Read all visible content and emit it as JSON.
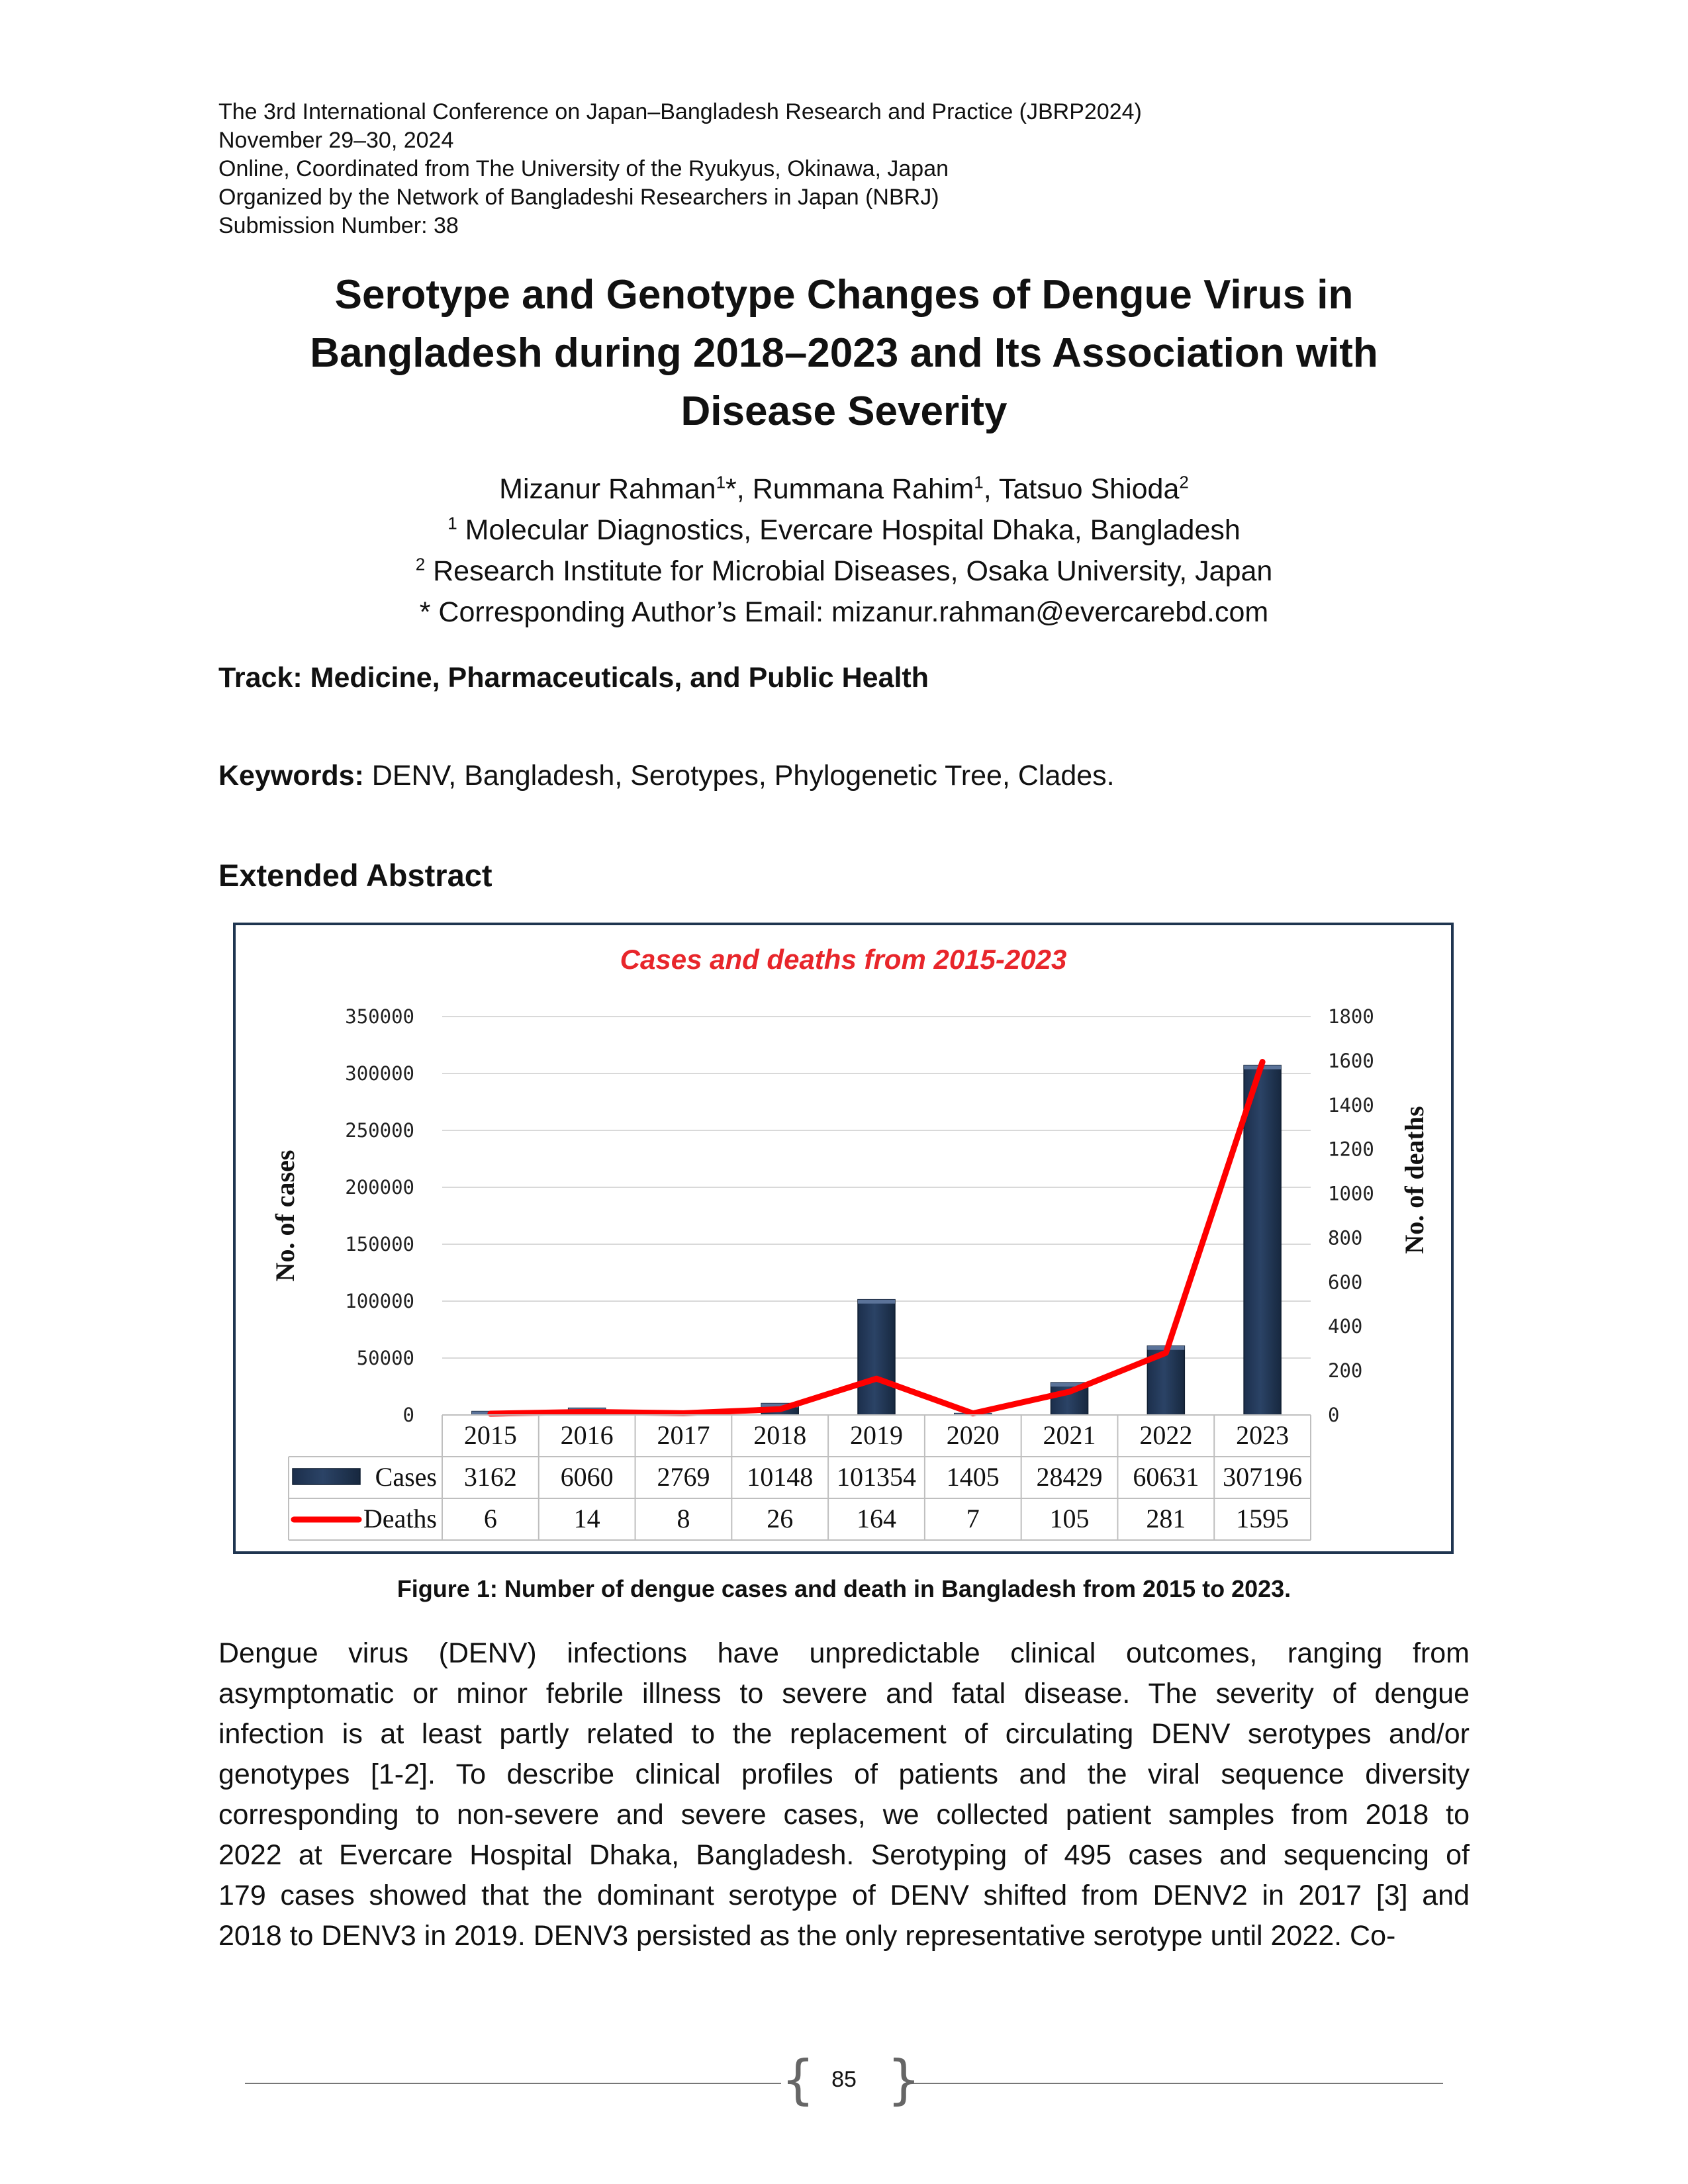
{
  "header": {
    "lines": [
      "The 3rd International Conference on Japan–Bangladesh Research and Practice (JBRP2024)",
      "November 29–30, 2024",
      "Online, Coordinated from The University of the Ryukyus, Okinawa, Japan",
      "Organized by the Network of Bangladeshi Researchers in Japan (NBRJ)",
      "Submission Number: 38"
    ]
  },
  "title": {
    "lines": [
      "Serotype and Genotype Changes of Dengue Virus in",
      "Bangladesh during 2018–2023 and Its Association with",
      "Disease Severity"
    ]
  },
  "authors": {
    "a1": "Mizanur Rahman",
    "a1_sup": "1",
    "a1_mark": "*, ",
    "a2": "Rummana Rahim",
    "a2_sup": "1",
    "a2_sep": ", ",
    "a3": "Tatsuo Shioda",
    "a3_sup": "2",
    "aff1_sup": "1",
    "aff1": " Molecular Diagnostics, Evercare Hospital Dhaka, Bangladesh",
    "aff2_sup": "2",
    "aff2": " Research Institute for Microbial Diseases, Osaka University, Japan",
    "email": "* Corresponding Author’s Email: mizanur.rahman@evercarebd.com"
  },
  "track": "Track: Medicine, Pharmaceuticals, and Public Health",
  "keywords": {
    "label": "Keywords:",
    "text": " DENV, Bangladesh, Serotypes, Phylogenetic Tree, Clades."
  },
  "section_heading": "Extended Abstract",
  "chart_data": {
    "type": "bar",
    "title": "Cases and deaths from 2015-2023",
    "categories": [
      "2015",
      "2016",
      "2017",
      "2018",
      "2019",
      "2020",
      "2021",
      "2022",
      "2023"
    ],
    "series": [
      {
        "name": "Cases",
        "type": "bar",
        "axis": "left",
        "values": [
          3162,
          6060,
          2769,
          10148,
          101354,
          1405,
          28429,
          60631,
          307196
        ]
      },
      {
        "name": "Deaths",
        "type": "line",
        "axis": "right",
        "values": [
          6,
          14,
          8,
          26,
          164,
          7,
          105,
          281,
          1595
        ]
      }
    ],
    "ylabel": "No. of cases",
    "y2label": "No. of deaths",
    "ylim": [
      0,
      350000
    ],
    "y2lim": [
      0,
      1800
    ],
    "yticks": [
      "0",
      "50000",
      "100000",
      "150000",
      "200000",
      "250000",
      "300000",
      "350000"
    ],
    "y2ticks": [
      "0",
      "200",
      "400",
      "600",
      "800",
      "1000",
      "1200",
      "1400",
      "1600",
      "1800"
    ],
    "grid": true,
    "legend": "data table below plot",
    "bar_color": "#2b4366",
    "line_color": "#ff0000",
    "title_color": "#e8262b"
  },
  "caption": "Figure 1: Number of dengue cases and death in Bangladesh from 2015 to 2023.",
  "body_lines": [
    "Dengue virus (DENV) infections have unpredictable clinical outcomes, ranging from",
    "asymptomatic or minor febrile illness to severe and fatal disease. The severity of dengue",
    "infection is at least partly related to the replacement of circulating DENV serotypes and/or",
    "genotypes [1-2]. To describe clinical profiles of patients and the viral sequence diversity",
    "corresponding to non-severe and severe cases, we collected patient samples from 2018 to",
    "2022 at Evercare Hospital Dhaka, Bangladesh. Serotyping of 495 cases and sequencing of",
    "179 cases showed that the dominant serotype of DENV shifted from DENV2 in 2017 [3] and",
    "2018 to DENV3 in 2019. DENV3 persisted as the only representative serotype until 2022. Co-"
  ],
  "footer": {
    "page_number": "85",
    "brace_left": "{",
    "brace_right": "}"
  }
}
